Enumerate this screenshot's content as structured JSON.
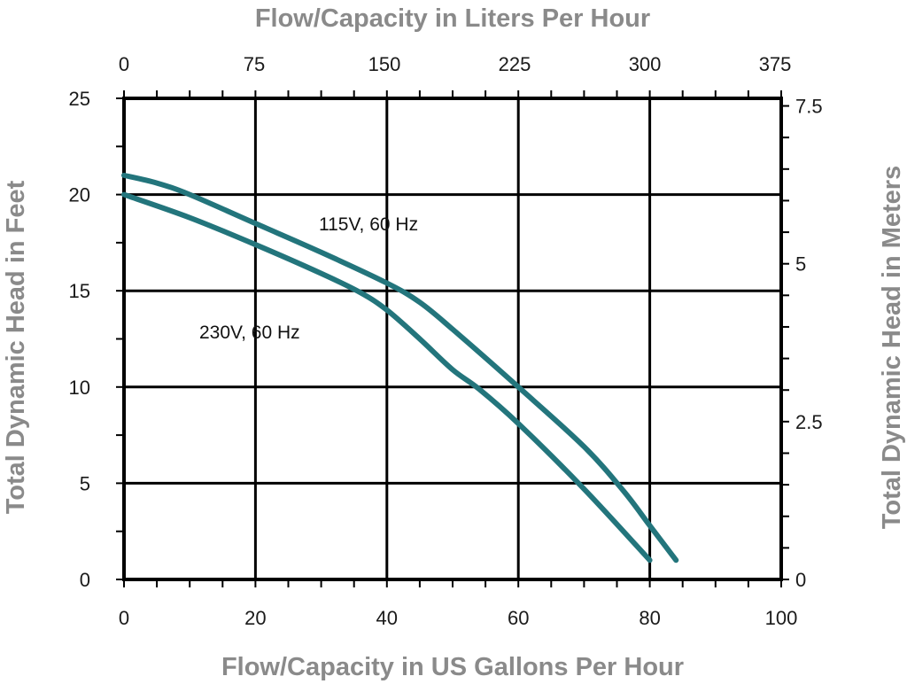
{
  "chart_data": {
    "type": "line",
    "title": "",
    "xlabel": "Flow/Capacity in US Gallons Per Hour",
    "ylabel": "Total Dynamic Head in Feet",
    "x2label": "Flow/Capacity in Liters Per Hour",
    "y2label": "Total Dynamic Head in Meters",
    "xlim": [
      0,
      100
    ],
    "ylim": [
      0,
      25
    ],
    "x_ticks": [
      "0",
      "20",
      "40",
      "60",
      "80",
      "100"
    ],
    "y_ticks": [
      "0",
      "5",
      "10",
      "15",
      "20",
      "25"
    ],
    "x2_ticks": [
      "0",
      "75",
      "150",
      "225",
      "300",
      "375"
    ],
    "y2_ticks": [
      "0",
      "2.5",
      "5",
      "7.5"
    ],
    "grid": true,
    "line_color": "#23757c",
    "series": [
      {
        "name": "115V, 60 Hz",
        "x": [
          0,
          5,
          10,
          20,
          30,
          40,
          45,
          50,
          60,
          70,
          76,
          80,
          84
        ],
        "y": [
          21,
          20.6,
          20.0,
          18.5,
          17.0,
          15.4,
          14.4,
          13.0,
          10.0,
          6.9,
          4.6,
          2.8,
          1.0
        ]
      },
      {
        "name": "230V, 60 Hz",
        "x": [
          0,
          10,
          20,
          30,
          36,
          40,
          45,
          50,
          54,
          60,
          70,
          80
        ],
        "y": [
          20,
          18.8,
          17.4,
          15.9,
          14.9,
          14.0,
          12.5,
          10.9,
          9.9,
          8.1,
          4.7,
          1.0
        ]
      }
    ]
  }
}
